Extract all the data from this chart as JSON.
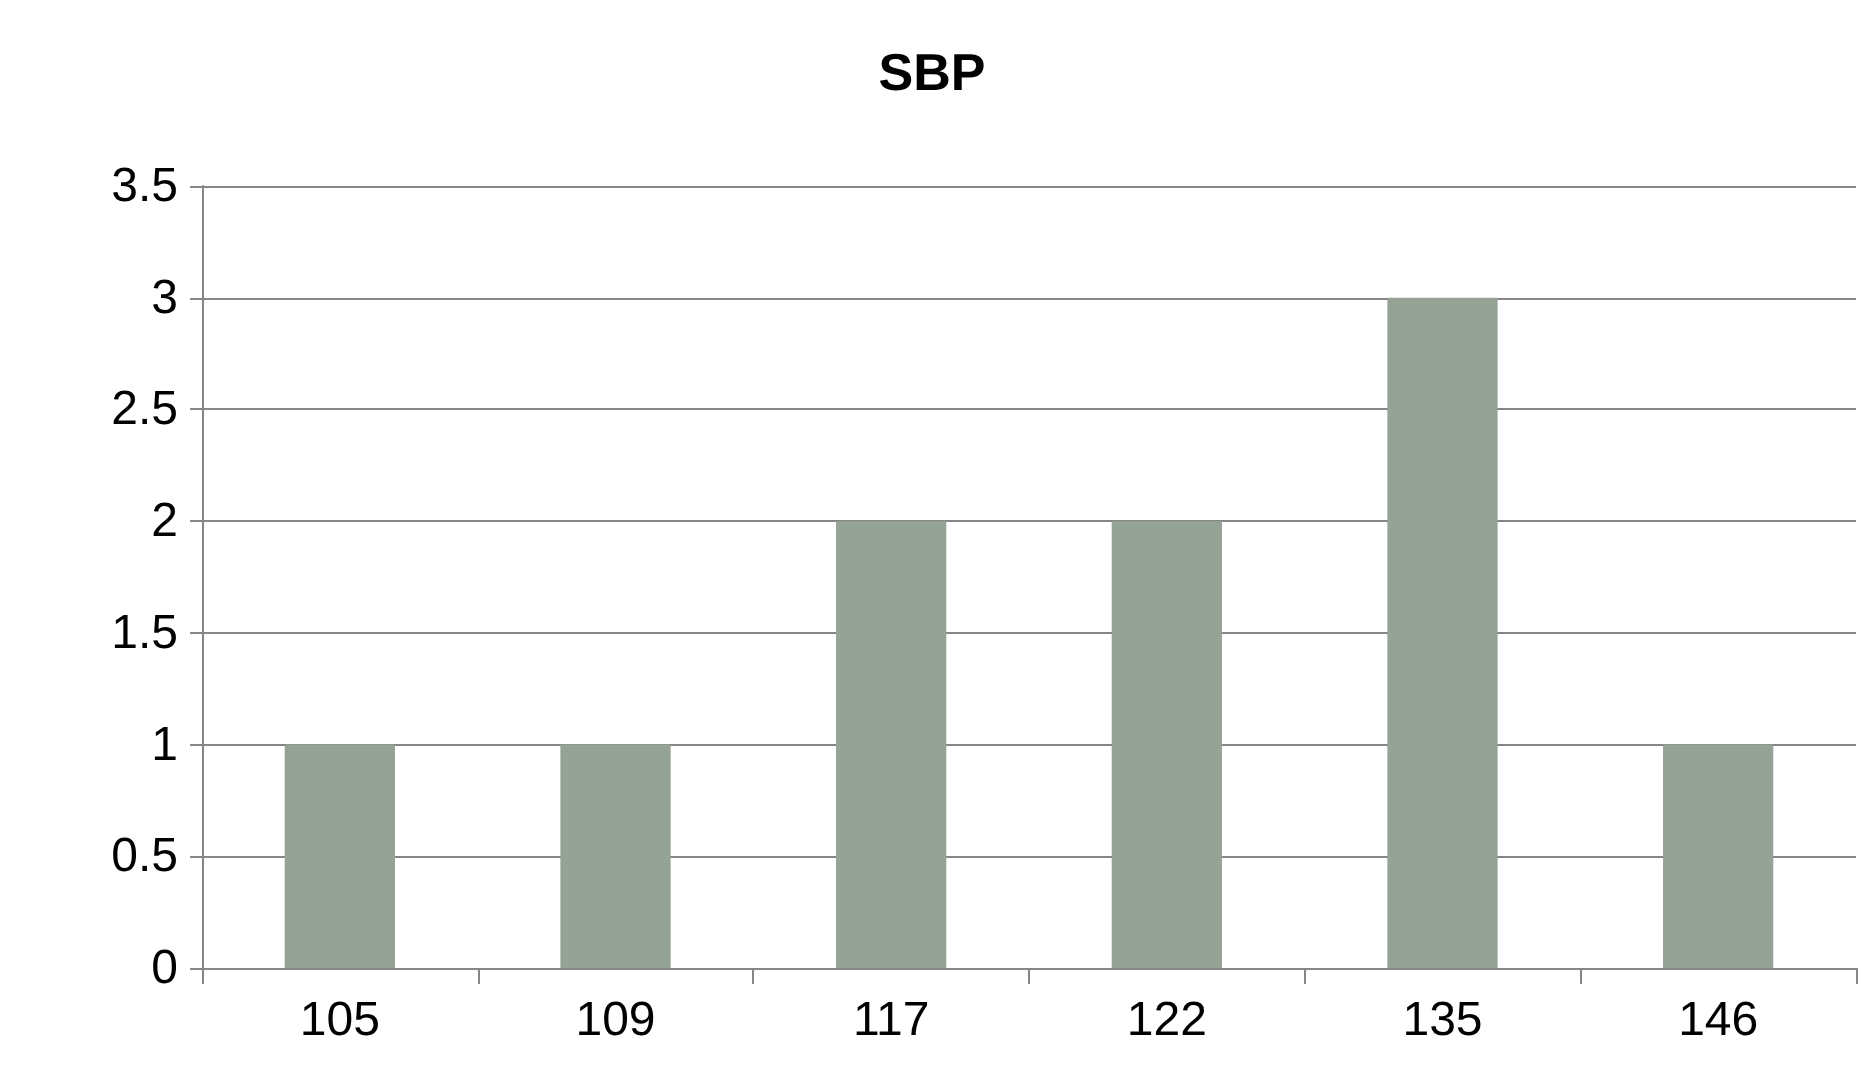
{
  "chart_data": {
    "type": "bar",
    "title": "SBP",
    "categories": [
      "105",
      "109",
      "117",
      "122",
      "135",
      "146"
    ],
    "values": [
      1,
      1,
      2,
      2,
      3,
      1
    ],
    "color": "#94a396",
    "ylim": [
      0,
      3.5
    ],
    "yticks": [
      0,
      0.5,
      1,
      1.5,
      2,
      2.5,
      3,
      3.5
    ],
    "grid": "y"
  }
}
